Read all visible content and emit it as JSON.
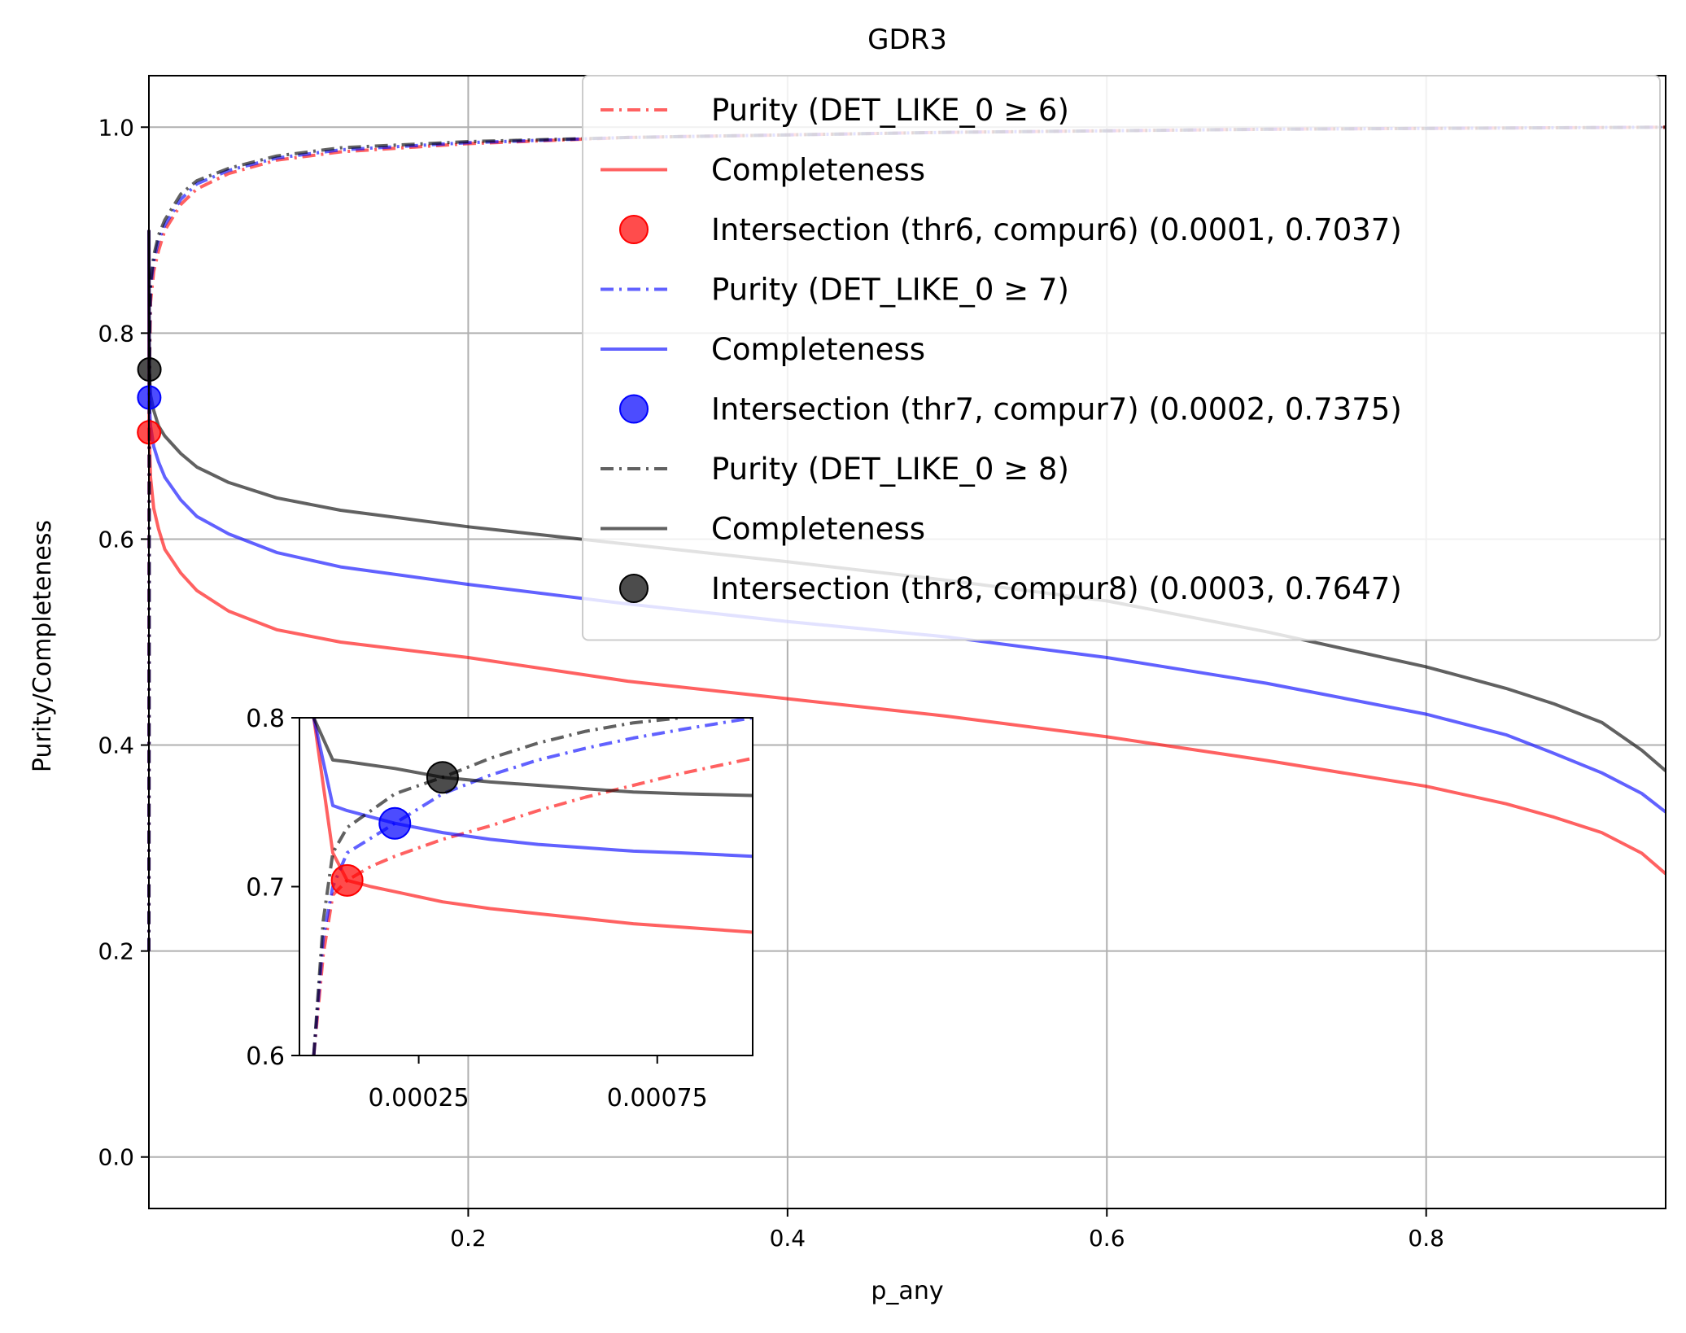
{
  "chart_data": {
    "type": "line",
    "title": "GDR3",
    "xlabel": "p_any",
    "ylabel": "Purity/Completeness",
    "xlim": [
      0.0,
      0.95
    ],
    "ylim": [
      -0.05,
      1.05
    ],
    "xticks": [
      0.2,
      0.4,
      0.6,
      0.8
    ],
    "xtick_labels": [
      "0.2",
      "0.4",
      "0.6",
      "0.8"
    ],
    "yticks": [
      0.0,
      0.2,
      0.4,
      0.6,
      0.8,
      1.0
    ],
    "ytick_labels": [
      "0.0",
      "0.2",
      "0.4",
      "0.6",
      "0.8",
      "1.0"
    ],
    "grid": true,
    "legend_position": "top-right",
    "series": [
      {
        "name": "Purity (DET_LIKE_0 ≥ 6)",
        "color": "#ff0000",
        "style": "dashdot",
        "x": [
          0.0,
          0.0001,
          0.0005,
          0.001,
          0.003,
          0.006,
          0.01,
          0.02,
          0.03,
          0.05,
          0.08,
          0.12,
          0.2,
          0.3,
          0.5,
          0.7,
          0.95
        ],
        "y": [
          0.2,
          0.7037,
          0.78,
          0.83,
          0.86,
          0.88,
          0.9,
          0.925,
          0.94,
          0.955,
          0.968,
          0.976,
          0.984,
          0.99,
          0.995,
          0.998,
          1.0
        ]
      },
      {
        "name": "Completeness",
        "color": "#ff0000",
        "style": "solid",
        "x": [
          0.0,
          0.0001,
          0.0005,
          0.001,
          0.003,
          0.006,
          0.01,
          0.02,
          0.03,
          0.05,
          0.08,
          0.12,
          0.2,
          0.3,
          0.4,
          0.5,
          0.6,
          0.7,
          0.8,
          0.85,
          0.88,
          0.91,
          0.935,
          0.95
        ],
        "y": [
          0.9,
          0.7037,
          0.685,
          0.66,
          0.63,
          0.61,
          0.59,
          0.567,
          0.55,
          0.53,
          0.512,
          0.5,
          0.485,
          0.462,
          0.445,
          0.428,
          0.408,
          0.385,
          0.36,
          0.343,
          0.33,
          0.315,
          0.295,
          0.275
        ]
      },
      {
        "name": "Purity (DET_LIKE_0 ≥ 7)",
        "color": "#0000ff",
        "style": "dashdot",
        "x": [
          0.0,
          0.0002,
          0.0005,
          0.001,
          0.003,
          0.006,
          0.01,
          0.02,
          0.03,
          0.05,
          0.08,
          0.12,
          0.2,
          0.3,
          0.5,
          0.7,
          0.95
        ],
        "y": [
          0.2,
          0.7375,
          0.8,
          0.845,
          0.87,
          0.89,
          0.905,
          0.93,
          0.945,
          0.958,
          0.97,
          0.978,
          0.985,
          0.99,
          0.995,
          0.998,
          1.0
        ]
      },
      {
        "name": "Completeness",
        "color": "#0000ff",
        "style": "solid",
        "x": [
          0.0,
          0.0002,
          0.0005,
          0.001,
          0.003,
          0.006,
          0.01,
          0.02,
          0.03,
          0.05,
          0.08,
          0.12,
          0.2,
          0.3,
          0.4,
          0.5,
          0.6,
          0.7,
          0.8,
          0.85,
          0.88,
          0.91,
          0.935,
          0.95
        ],
        "y": [
          0.9,
          0.7375,
          0.725,
          0.71,
          0.69,
          0.675,
          0.66,
          0.638,
          0.622,
          0.605,
          0.587,
          0.573,
          0.556,
          0.537,
          0.52,
          0.505,
          0.485,
          0.46,
          0.43,
          0.41,
          0.392,
          0.373,
          0.353,
          0.335
        ]
      },
      {
        "name": "Purity (DET_LIKE_0 ≥ 8)",
        "color": "#000000",
        "style": "dashdot",
        "x": [
          0.0,
          0.0003,
          0.0005,
          0.001,
          0.003,
          0.006,
          0.01,
          0.02,
          0.03,
          0.05,
          0.08,
          0.12,
          0.2,
          0.3,
          0.5,
          0.7,
          0.95
        ],
        "y": [
          0.2,
          0.7647,
          0.81,
          0.85,
          0.875,
          0.895,
          0.91,
          0.935,
          0.948,
          0.96,
          0.972,
          0.98,
          0.986,
          0.99,
          0.995,
          0.998,
          1.0
        ]
      },
      {
        "name": "Completeness",
        "color": "#000000",
        "style": "solid",
        "x": [
          0.0,
          0.0003,
          0.0005,
          0.001,
          0.003,
          0.006,
          0.01,
          0.02,
          0.03,
          0.05,
          0.08,
          0.12,
          0.2,
          0.3,
          0.4,
          0.5,
          0.6,
          0.7,
          0.8,
          0.85,
          0.88,
          0.91,
          0.935,
          0.95
        ],
        "y": [
          0.9,
          0.7647,
          0.755,
          0.74,
          0.725,
          0.71,
          0.7,
          0.683,
          0.67,
          0.655,
          0.64,
          0.628,
          0.612,
          0.595,
          0.578,
          0.56,
          0.54,
          0.51,
          0.476,
          0.455,
          0.44,
          0.422,
          0.395,
          0.375
        ]
      }
    ],
    "intersections": [
      {
        "name": "Intersection (thr6, compur6) (0.0001, 0.7037)",
        "x": 0.0001,
        "y": 0.7037,
        "color": "#ff0000"
      },
      {
        "name": "Intersection (thr7, compur7) (0.0002, 0.7375)",
        "x": 0.0002,
        "y": 0.7375,
        "color": "#0000ff"
      },
      {
        "name": "Intersection (thr8, compur8) (0.0003, 0.7647)",
        "x": 0.0003,
        "y": 0.7647,
        "color": "#000000"
      }
    ],
    "legend": [
      {
        "label": "Purity (DET_LIKE_0 ≥ 6)",
        "kind": "line",
        "style": "dashdot",
        "color": "#ff0000"
      },
      {
        "label": "Completeness",
        "kind": "line",
        "style": "solid",
        "color": "#ff0000"
      },
      {
        "label": "Intersection (thr6, compur6) (0.0001, 0.7037)",
        "kind": "marker",
        "color": "#ff0000"
      },
      {
        "label": "Purity (DET_LIKE_0 ≥ 7)",
        "kind": "line",
        "style": "dashdot",
        "color": "#0000ff"
      },
      {
        "label": "Completeness",
        "kind": "line",
        "style": "solid",
        "color": "#0000ff"
      },
      {
        "label": "Intersection (thr7, compur7) (0.0002, 0.7375)",
        "kind": "marker",
        "color": "#0000ff"
      },
      {
        "label": "Purity (DET_LIKE_0 ≥ 8)",
        "kind": "line",
        "style": "dashdot",
        "color": "#000000"
      },
      {
        "label": "Completeness",
        "kind": "line",
        "style": "solid",
        "color": "#000000"
      },
      {
        "label": "Intersection (thr8, compur8) (0.0003, 0.7647)",
        "kind": "marker",
        "color": "#000000"
      }
    ],
    "inset": {
      "xlim": [
        0.0,
        0.00095
      ],
      "ylim": [
        0.6,
        0.8
      ],
      "xticks": [
        0.00025,
        0.00075
      ],
      "xtick_labels": [
        "0.00025",
        "0.00075"
      ],
      "yticks": [
        0.6,
        0.7,
        0.8
      ],
      "ytick_labels": [
        "0.6",
        "0.7",
        "0.8"
      ],
      "series": [
        {
          "color": "#ff0000",
          "style": "dashdot",
          "x": [
            3e-05,
            5e-05,
            7e-05,
            0.0001,
            0.00015,
            0.0002,
            0.0003,
            0.0004,
            0.0005,
            0.0006,
            0.0007,
            0.0008,
            0.00095
          ],
          "y": [
            0.6,
            0.66,
            0.695,
            0.7037,
            0.712,
            0.718,
            0.728,
            0.736,
            0.745,
            0.753,
            0.76,
            0.767,
            0.776
          ]
        },
        {
          "color": "#ff0000",
          "style": "solid",
          "x": [
            3e-05,
            7e-05,
            0.0001,
            0.00015,
            0.0002,
            0.0003,
            0.0004,
            0.0005,
            0.0006,
            0.0007,
            0.0008,
            0.00095
          ],
          "y": [
            0.8,
            0.72,
            0.7037,
            0.7,
            0.697,
            0.691,
            0.687,
            0.684,
            0.681,
            0.678,
            0.676,
            0.673
          ]
        },
        {
          "color": "#0000ff",
          "style": "dashdot",
          "x": [
            3e-05,
            5e-05,
            7e-05,
            0.0001,
            0.0002,
            0.0003,
            0.0004,
            0.0005,
            0.0006,
            0.0007,
            0.0008,
            0.00095
          ],
          "y": [
            0.6,
            0.67,
            0.7,
            0.72,
            0.7375,
            0.755,
            0.766,
            0.775,
            0.782,
            0.788,
            0.793,
            0.8
          ]
        },
        {
          "color": "#0000ff",
          "style": "solid",
          "x": [
            3e-05,
            7e-05,
            0.0001,
            0.0002,
            0.0003,
            0.0004,
            0.0005,
            0.0006,
            0.0007,
            0.0008,
            0.00095
          ],
          "y": [
            0.8,
            0.748,
            0.745,
            0.7375,
            0.732,
            0.728,
            0.725,
            0.723,
            0.721,
            0.72,
            0.718
          ]
        },
        {
          "color": "#000000",
          "style": "dashdot",
          "x": [
            3e-05,
            5e-05,
            7e-05,
            0.0001,
            0.0002,
            0.0003,
            0.0004,
            0.0005,
            0.0006,
            0.0007,
            0.0008
          ],
          "y": [
            0.6,
            0.68,
            0.72,
            0.735,
            0.755,
            0.7647,
            0.776,
            0.785,
            0.792,
            0.797,
            0.8
          ]
        },
        {
          "color": "#000000",
          "style": "solid",
          "x": [
            3e-05,
            7e-05,
            0.0001,
            0.0002,
            0.0003,
            0.0004,
            0.0005,
            0.0006,
            0.0007,
            0.0008,
            0.00095
          ],
          "y": [
            0.8,
            0.775,
            0.774,
            0.77,
            0.7647,
            0.762,
            0.76,
            0.758,
            0.756,
            0.755,
            0.754
          ]
        }
      ]
    }
  }
}
